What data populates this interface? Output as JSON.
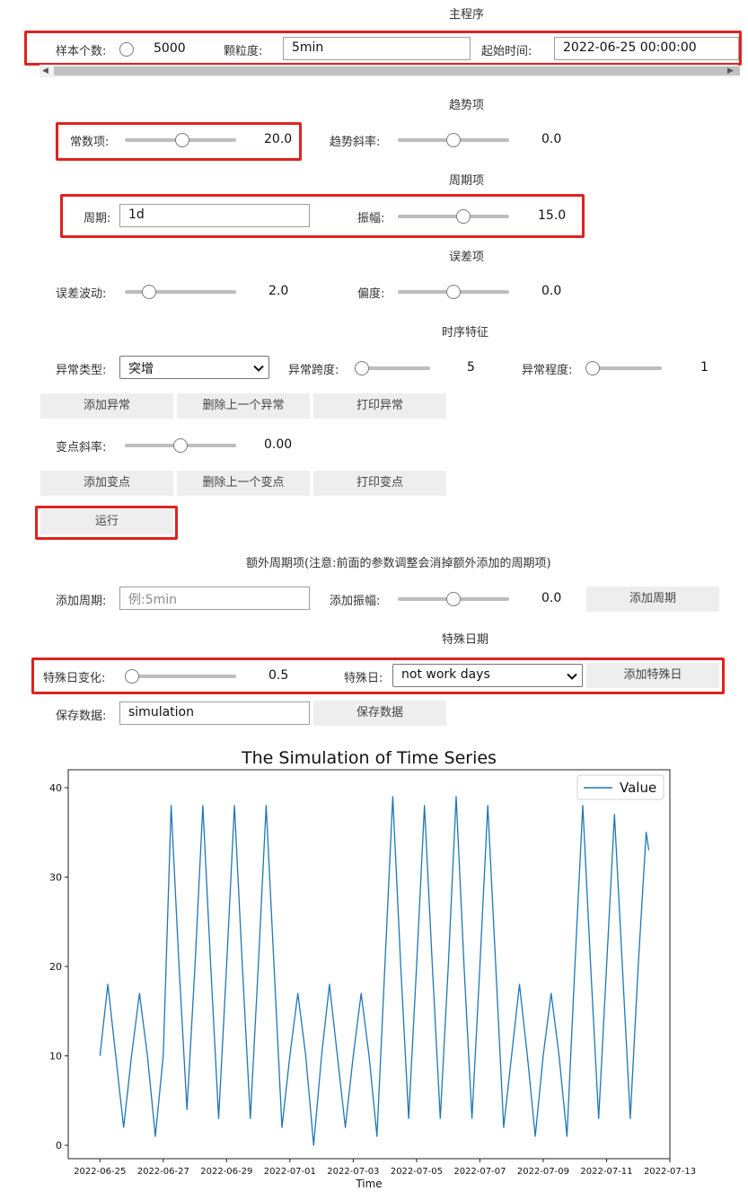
{
  "main_program": {
    "section_title": "主程序",
    "sample_count_label": "样本个数:",
    "sample_count_value": "5000",
    "granularity_label": "颗粒度:",
    "granularity_value": "5min",
    "start_time_label": "起始时间:",
    "start_time_value": "2022-06-25 00:00:00"
  },
  "trend": {
    "section_title": "趋势项",
    "constant_label": "常数项:",
    "constant_value": "20.0",
    "constant_fraction": 0.52,
    "slope_label": "趋势斜率:",
    "slope_value": "0.0",
    "slope_fraction": 0.5
  },
  "period": {
    "section_title": "周期项",
    "period_label": "周期:",
    "period_value": "1d",
    "amplitude_label": "振幅:",
    "amplitude_value": "15.0",
    "amplitude_fraction": 0.59
  },
  "error": {
    "section_title": "误差项",
    "fluctuation_label": "误差波动:",
    "fluctuation_value": "2.0",
    "fluctuation_fraction": 0.22,
    "bias_label": "偏度:",
    "bias_value": "0.0",
    "bias_fraction": 0.5
  },
  "features": {
    "section_title": "时序特征",
    "anomaly_type_label": "异常类型:",
    "anomaly_type_value": "突增",
    "anomaly_span_label": "异常跨度:",
    "anomaly_span_value": "5",
    "anomaly_span_fraction": 0.0,
    "anomaly_level_label": "异常程度:",
    "anomaly_level_value": "1",
    "anomaly_level_fraction": 0.0,
    "add_anomaly": "添加异常",
    "delete_anomaly": "删除上一个异常",
    "print_anomaly": "打印异常",
    "changepoint_slope_label": "变点斜率:",
    "changepoint_slope_value": "0.00",
    "changepoint_slope_fraction": 0.5,
    "add_changepoint": "添加变点",
    "delete_changepoint": "删除上一个变点",
    "print_changepoint": "打印变点",
    "run": "运行"
  },
  "extra_period": {
    "section_title": "额外周期项(注意:前面的参数调整会消掉额外添加的周期项)",
    "add_period_label": "添加周期:",
    "add_period_placeholder": "例:5min",
    "add_amplitude_label": "添加振幅:",
    "add_amplitude_value": "0.0",
    "add_amplitude_fraction": 0.5,
    "add_period_button": "添加周期"
  },
  "special_days": {
    "section_title": "特殊日期",
    "change_label": "特殊日变化:",
    "change_value": "0.5",
    "change_fraction": 0.0,
    "day_label": "特殊日:",
    "day_value": "not work days",
    "add_button": "添加特殊日"
  },
  "save": {
    "label": "保存数据:",
    "value": "simulation",
    "button": "保存数据"
  },
  "colors": {
    "highlight": "#e0221f",
    "series": "#1f77b4",
    "button_bg": "#eeeeee"
  },
  "chart_data": {
    "type": "line",
    "title": "The Simulation of Time Series",
    "xlabel": "Time",
    "ylabel": "",
    "legend": "top-right",
    "grid": false,
    "ylim": [
      -1.5,
      42
    ],
    "xlim": [
      "2022-06-24",
      "2022-07-13"
    ],
    "x_ticks": [
      "2022-06-25",
      "2022-06-27",
      "2022-06-29",
      "2022-07-01",
      "2022-07-03",
      "2022-07-05",
      "2022-07-07",
      "2022-07-09",
      "2022-07-11",
      "2022-07-13"
    ],
    "y_ticks": [
      0,
      10,
      20,
      30,
      40
    ],
    "series": [
      {
        "name": "Value",
        "x": [
          "2022-06-25 00:00",
          "2022-06-25 06:00",
          "2022-06-25 12:00",
          "2022-06-25 18:00",
          "2022-06-26 00:00",
          "2022-06-26 06:00",
          "2022-06-26 12:00",
          "2022-06-26 18:00",
          "2022-06-27 00:00",
          "2022-06-27 06:00",
          "2022-06-27 12:00",
          "2022-06-27 18:00",
          "2022-06-28 00:00",
          "2022-06-28 06:00",
          "2022-06-28 12:00",
          "2022-06-28 18:00",
          "2022-06-29 00:00",
          "2022-06-29 06:00",
          "2022-06-29 12:00",
          "2022-06-29 18:00",
          "2022-06-30 00:00",
          "2022-06-30 06:00",
          "2022-06-30 12:00",
          "2022-06-30 18:00",
          "2022-07-01 00:00",
          "2022-07-01 06:00",
          "2022-07-01 12:00",
          "2022-07-01 18:00",
          "2022-07-02 00:00",
          "2022-07-02 06:00",
          "2022-07-02 12:00",
          "2022-07-02 18:00",
          "2022-07-03 00:00",
          "2022-07-03 06:00",
          "2022-07-03 12:00",
          "2022-07-03 18:00",
          "2022-07-04 00:00",
          "2022-07-04 06:00",
          "2022-07-04 12:00",
          "2022-07-04 18:00",
          "2022-07-05 00:00",
          "2022-07-05 06:00",
          "2022-07-05 12:00",
          "2022-07-05 18:00",
          "2022-07-06 00:00",
          "2022-07-06 06:00",
          "2022-07-06 12:00",
          "2022-07-06 18:00",
          "2022-07-07 00:00",
          "2022-07-07 06:00",
          "2022-07-07 12:00",
          "2022-07-07 18:00",
          "2022-07-08 00:00",
          "2022-07-08 06:00",
          "2022-07-08 12:00",
          "2022-07-08 18:00",
          "2022-07-09 00:00",
          "2022-07-09 06:00",
          "2022-07-09 12:00",
          "2022-07-09 18:00",
          "2022-07-10 00:00",
          "2022-07-10 06:00",
          "2022-07-10 12:00",
          "2022-07-10 18:00",
          "2022-07-11 00:00",
          "2022-07-11 06:00",
          "2022-07-11 12:00",
          "2022-07-11 18:00",
          "2022-07-12 00:00",
          "2022-07-12 06:00",
          "2022-07-12 08:00"
        ],
        "values": [
          10,
          18,
          10,
          2,
          10,
          17,
          10,
          1,
          10,
          38,
          20,
          4,
          20,
          38,
          20,
          3,
          20,
          38,
          20,
          3,
          20,
          38,
          20,
          2,
          10,
          17,
          10,
          0,
          10,
          18,
          10,
          2,
          10,
          17,
          10,
          1,
          20,
          39,
          20,
          3,
          20,
          38,
          20,
          3,
          20,
          39,
          20,
          3,
          20,
          38,
          20,
          2,
          10,
          18,
          10,
          1,
          10,
          17,
          10,
          1,
          20,
          38,
          20,
          3,
          20,
          37,
          20,
          3,
          20,
          35,
          33
        ]
      }
    ]
  }
}
